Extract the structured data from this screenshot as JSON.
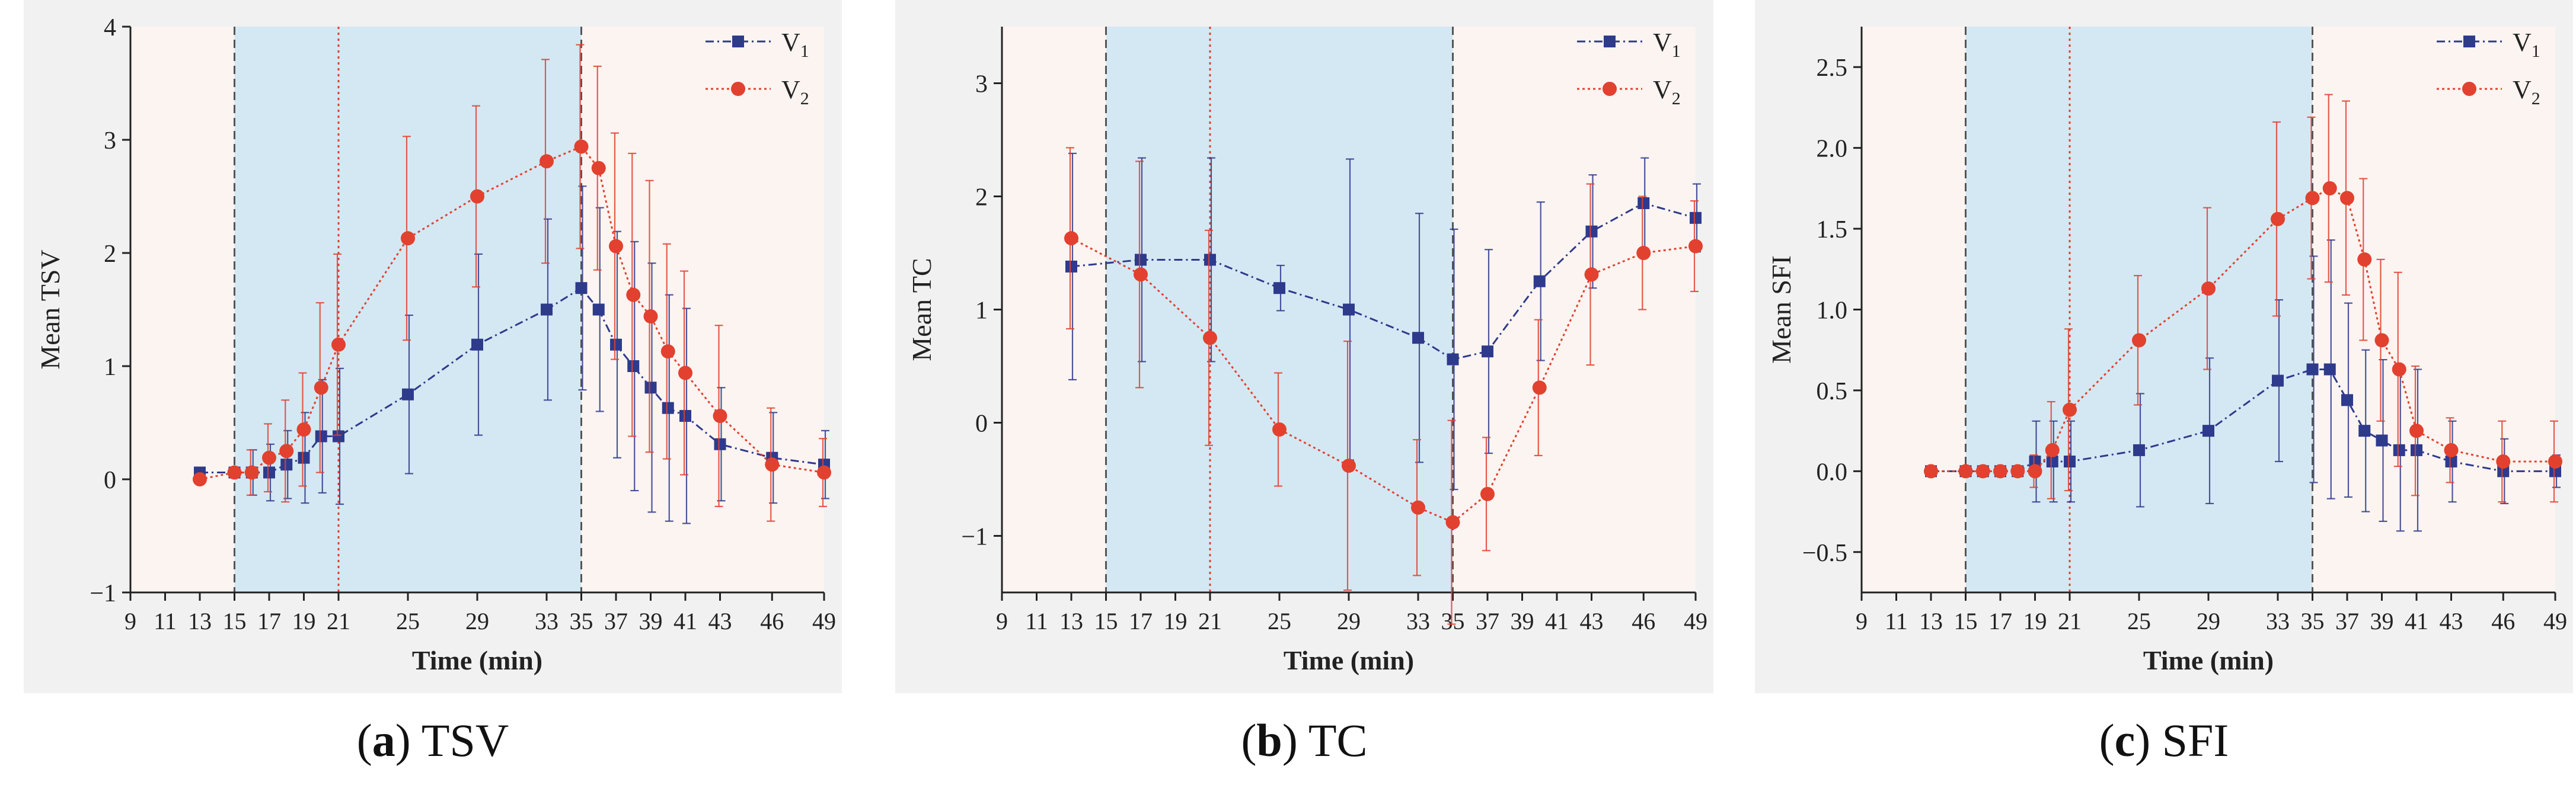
{
  "colors": {
    "v1": "#2e3a8c",
    "v2": "#e2412f",
    "shade": "#d4e8f3",
    "plot_bg": "#fbf4f1"
  },
  "legend": {
    "v1_base": "V",
    "v1_sub": "1",
    "v2_base": "V",
    "v2_sub": "2"
  },
  "captions": [
    {
      "letter": "a",
      "text": "TSV"
    },
    {
      "letter": "b",
      "text": "TC"
    },
    {
      "letter": "c",
      "text": "SFI"
    }
  ],
  "chart_data": [
    {
      "type": "line",
      "id": "a",
      "title": "",
      "xlabel": "Time (min)",
      "ylabel": "Mean TSV",
      "xlim": [
        9,
        49
      ],
      "ylim": [
        -1,
        4
      ],
      "xticks": [
        9,
        11,
        13,
        15,
        17,
        19,
        21,
        25,
        29,
        33,
        35,
        37,
        39,
        41,
        43,
        46,
        49
      ],
      "yticks": [
        -1,
        0,
        1,
        2,
        3,
        4
      ],
      "ytick_labels": [
        "−1",
        "0",
        "1",
        "2",
        "3",
        "4"
      ],
      "shaded_x": [
        15,
        35
      ],
      "vlines": [
        {
          "x": 15,
          "style": "dash",
          "color": "#555555"
        },
        {
          "x": 21,
          "style": "dot",
          "color": "#e2412f"
        },
        {
          "x": 35,
          "style": "dash",
          "color": "#555555"
        }
      ],
      "series": [
        {
          "name": "V1",
          "marker": "square",
          "x": [
            13,
            15,
            16,
            17,
            18,
            19,
            20,
            21,
            25,
            29,
            33,
            35,
            36,
            37,
            38,
            39,
            40,
            41,
            43,
            46,
            49
          ],
          "y": [
            0.06,
            0.06,
            0.06,
            0.06,
            0.13,
            0.19,
            0.38,
            0.38,
            0.75,
            1.19,
            1.5,
            1.69,
            1.5,
            1.19,
            1.0,
            0.81,
            0.63,
            0.56,
            0.31,
            0.19,
            0.13
          ],
          "err": [
            0,
            0,
            0.2,
            0.25,
            0.3,
            0.4,
            0.5,
            0.6,
            0.7,
            0.8,
            0.8,
            0.9,
            0.9,
            1.0,
            1.1,
            1.1,
            1.0,
            0.95,
            0.5,
            0.4,
            0.3
          ]
        },
        {
          "name": "V2",
          "marker": "circle",
          "x": [
            13,
            15,
            16,
            17,
            18,
            19,
            20,
            21,
            25,
            29,
            33,
            35,
            36,
            37,
            38,
            39,
            40,
            41,
            43,
            46,
            49
          ],
          "y": [
            0.0,
            0.06,
            0.06,
            0.19,
            0.25,
            0.44,
            0.81,
            1.19,
            2.13,
            2.5,
            2.81,
            2.94,
            2.75,
            2.06,
            1.63,
            1.44,
            1.13,
            0.94,
            0.56,
            0.13,
            0.06
          ],
          "err": [
            0,
            0,
            0.2,
            0.3,
            0.45,
            0.5,
            0.75,
            0.8,
            0.9,
            0.8,
            0.9,
            0.9,
            0.9,
            1.0,
            1.25,
            1.2,
            0.95,
            0.9,
            0.8,
            0.5,
            0.3
          ]
        }
      ]
    },
    {
      "type": "line",
      "id": "b",
      "title": "",
      "xlabel": "Time (min)",
      "ylabel": "Mean TC",
      "xlim": [
        9,
        49
      ],
      "ylim": [
        -1.5,
        3.5
      ],
      "xticks": [
        9,
        11,
        13,
        15,
        17,
        19,
        21,
        25,
        29,
        33,
        35,
        37,
        39,
        41,
        43,
        46,
        49
      ],
      "yticks": [
        -1,
        0,
        1,
        2,
        3
      ],
      "ytick_labels": [
        "−1",
        "0",
        "1",
        "2",
        "3"
      ],
      "shaded_x": [
        15,
        35
      ],
      "vlines": [
        {
          "x": 15,
          "style": "dash",
          "color": "#555555"
        },
        {
          "x": 21,
          "style": "dot",
          "color": "#e2412f"
        },
        {
          "x": 35,
          "style": "dash",
          "color": "#555555"
        }
      ],
      "series": [
        {
          "name": "V1",
          "marker": "square",
          "x": [
            13,
            17,
            21,
            25,
            29,
            33,
            35,
            37,
            40,
            43,
            46,
            49
          ],
          "y": [
            1.38,
            1.44,
            1.44,
            1.19,
            1.0,
            0.75,
            0.56,
            0.63,
            1.25,
            1.69,
            1.94,
            1.81
          ],
          "err": [
            1.0,
            0.9,
            0.9,
            0.2,
            1.33,
            1.1,
            1.15,
            0.9,
            0.7,
            0.5,
            0.4,
            0.3
          ]
        },
        {
          "name": "V2",
          "marker": "circle",
          "x": [
            13,
            17,
            21,
            25,
            29,
            33,
            35,
            37,
            40,
            43,
            46,
            49
          ],
          "y": [
            1.63,
            1.31,
            0.75,
            -0.06,
            -0.38,
            -0.75,
            -0.88,
            -0.63,
            0.31,
            1.31,
            1.5,
            1.56
          ],
          "err": [
            0.8,
            1.0,
            0.95,
            0.5,
            1.1,
            0.6,
            0.9,
            0.5,
            0.6,
            0.8,
            0.5,
            0.4
          ]
        }
      ]
    },
    {
      "type": "line",
      "id": "c",
      "title": "",
      "xlabel": "Time (min)",
      "ylabel": "Mean SFI",
      "xlim": [
        9,
        49
      ],
      "ylim": [
        -0.75,
        2.75
      ],
      "xticks": [
        9,
        11,
        13,
        15,
        17,
        19,
        21,
        25,
        29,
        33,
        35,
        37,
        39,
        41,
        43,
        46,
        49
      ],
      "yticks": [
        -0.5,
        0.0,
        0.5,
        1.0,
        1.5,
        2.0,
        2.5
      ],
      "ytick_labels": [
        "−0.5",
        "0.0",
        "0.5",
        "1.0",
        "1.5",
        "2.0",
        "2.5"
      ],
      "shaded_x": [
        15,
        35
      ],
      "vlines": [
        {
          "x": 15,
          "style": "dash",
          "color": "#555555"
        },
        {
          "x": 21,
          "style": "dot",
          "color": "#e2412f"
        },
        {
          "x": 35,
          "style": "dash",
          "color": "#555555"
        }
      ],
      "series": [
        {
          "name": "V1",
          "marker": "square",
          "x": [
            13,
            15,
            16,
            17,
            18,
            19,
            20,
            21,
            25,
            29,
            33,
            35,
            36,
            37,
            38,
            39,
            40,
            41,
            43,
            46,
            49
          ],
          "y": [
            0.0,
            0.0,
            0.0,
            0.0,
            0.0,
            0.06,
            0.06,
            0.06,
            0.13,
            0.25,
            0.56,
            0.63,
            0.63,
            0.44,
            0.25,
            0.19,
            0.13,
            0.13,
            0.06,
            0.0,
            0.0
          ],
          "err": [
            0,
            0,
            0,
            0,
            0,
            0.25,
            0.25,
            0.25,
            0.35,
            0.45,
            0.5,
            0.7,
            0.8,
            0.6,
            0.5,
            0.5,
            0.5,
            0.5,
            0.25,
            0.2,
            0.1
          ]
        },
        {
          "name": "V2",
          "marker": "circle",
          "x": [
            13,
            15,
            16,
            17,
            18,
            19,
            20,
            21,
            25,
            29,
            33,
            35,
            36,
            37,
            38,
            39,
            40,
            41,
            43,
            46,
            49
          ],
          "y": [
            0.0,
            0.0,
            0.0,
            0.0,
            0.0,
            0.0,
            0.13,
            0.38,
            0.81,
            1.13,
            1.56,
            1.69,
            1.75,
            1.69,
            1.31,
            0.81,
            0.63,
            0.25,
            0.13,
            0.06,
            0.06
          ],
          "err": [
            0,
            0,
            0,
            0,
            0,
            0.1,
            0.3,
            0.5,
            0.4,
            0.5,
            0.6,
            0.5,
            0.58,
            0.6,
            0.5,
            0.5,
            0.6,
            0.4,
            0.2,
            0.25,
            0.25
          ]
        }
      ]
    }
  ]
}
